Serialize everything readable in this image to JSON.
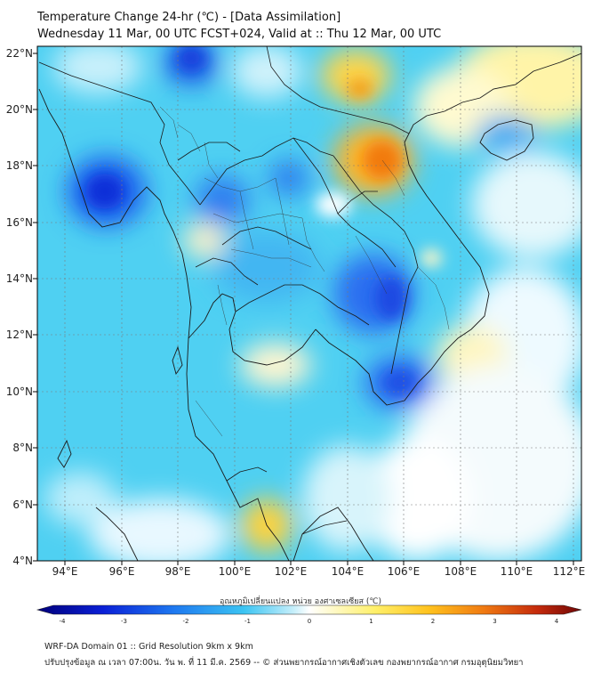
{
  "title": {
    "line1": "Temperature Change 24-hr (℃) - [Data Assimilation]",
    "line2": "Wednesday 11 Mar, 00 UTC FCST+024, Valid at :: Thu 12 Mar, 00 UTC"
  },
  "map": {
    "lon_labels": [
      "94°E",
      "96°E",
      "98°E",
      "100°E",
      "102°E",
      "104°E",
      "106°E",
      "108°E",
      "110°E",
      "112°E"
    ],
    "lat_labels": [
      "22°N",
      "20°N",
      "18°N",
      "16°N",
      "14°N",
      "12°N",
      "10°N",
      "8°N",
      "6°N",
      "4°N"
    ]
  },
  "colorbar": {
    "label": "อุณหภูมิเปลี่ยนแปลง หน่วย องศาเซลเซียส (℃)",
    "ticks": [
      "-4",
      "-3",
      "-2",
      "-1",
      "0",
      "1",
      "2",
      "3",
      "4"
    ],
    "min": -4,
    "max": 4
  },
  "footer": {
    "line1": "WRF-DA Domain 01 :: Grid Resolution 9km x 9km",
    "line2": "ปรับปรุงข้อมูล ณ เวลา 07:00น. วัน พ. ที่ 11 มี.ค. 2569 -- © ส่วนพยากรณ์อากาศเชิงตัวเลข กองพยากรณ์อากาศ กรมอุตุนิยมวิทยา"
  }
}
